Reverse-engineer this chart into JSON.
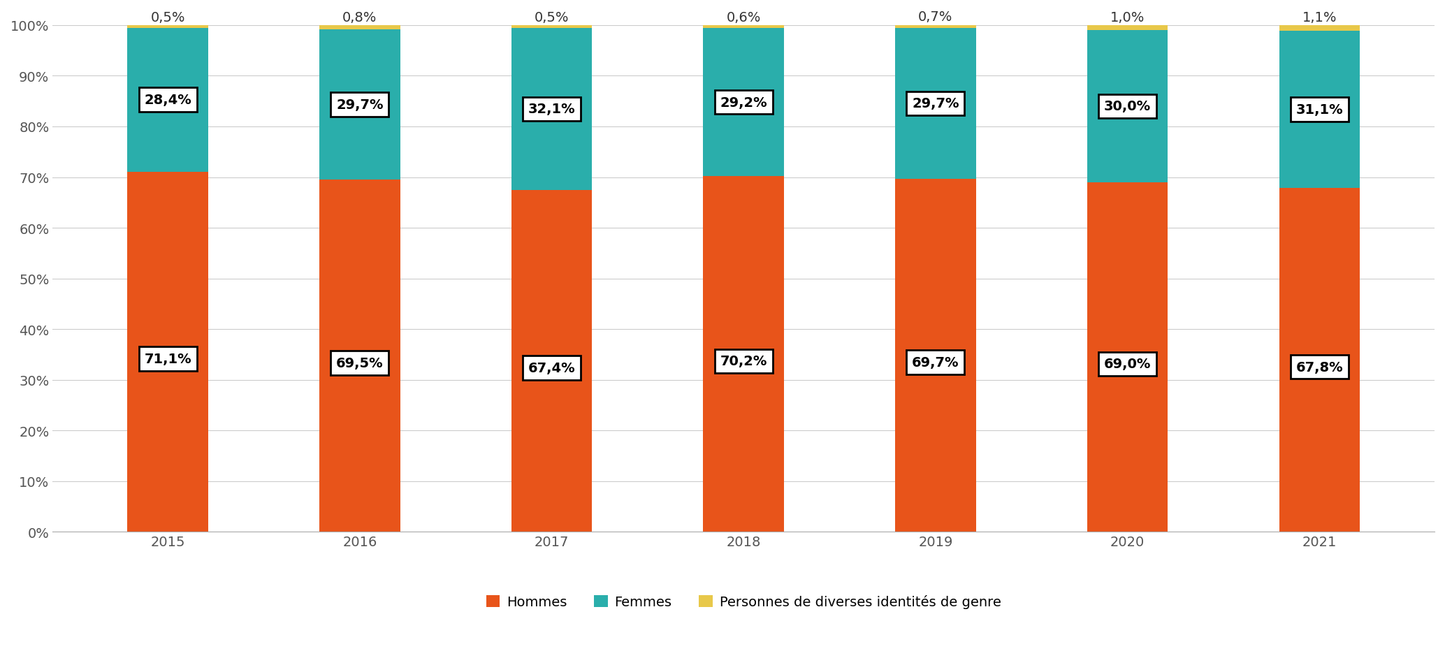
{
  "years": [
    "2015",
    "2016",
    "2017",
    "2018",
    "2019",
    "2020",
    "2021"
  ],
  "hommes": [
    71.1,
    69.5,
    67.4,
    70.2,
    69.7,
    69.0,
    67.8
  ],
  "femmes": [
    28.4,
    29.7,
    32.1,
    29.2,
    29.7,
    30.0,
    31.1
  ],
  "diverses": [
    0.5,
    0.8,
    0.5,
    0.6,
    0.7,
    1.0,
    1.1
  ],
  "color_hommes": "#E8541A",
  "color_femmes": "#2AAEAB",
  "color_diverses": "#E8C84A",
  "bar_width": 0.42,
  "ylim": [
    0,
    100
  ],
  "yticks": [
    0,
    10,
    20,
    30,
    40,
    50,
    60,
    70,
    80,
    90,
    100
  ],
  "ytick_labels": [
    "0%",
    "10%",
    "20%",
    "30%",
    "40%",
    "50%",
    "60%",
    "70%",
    "80%",
    "90%",
    "100%"
  ],
  "legend_hommes": "Hommes",
  "legend_femmes": "Femmes",
  "legend_diverses": "Personnes de diverses identités de genre",
  "background_color": "#ffffff",
  "grid_color": "#cccccc",
  "tick_fontsize": 14,
  "legend_fontsize": 14,
  "annot_fontsize": 14
}
